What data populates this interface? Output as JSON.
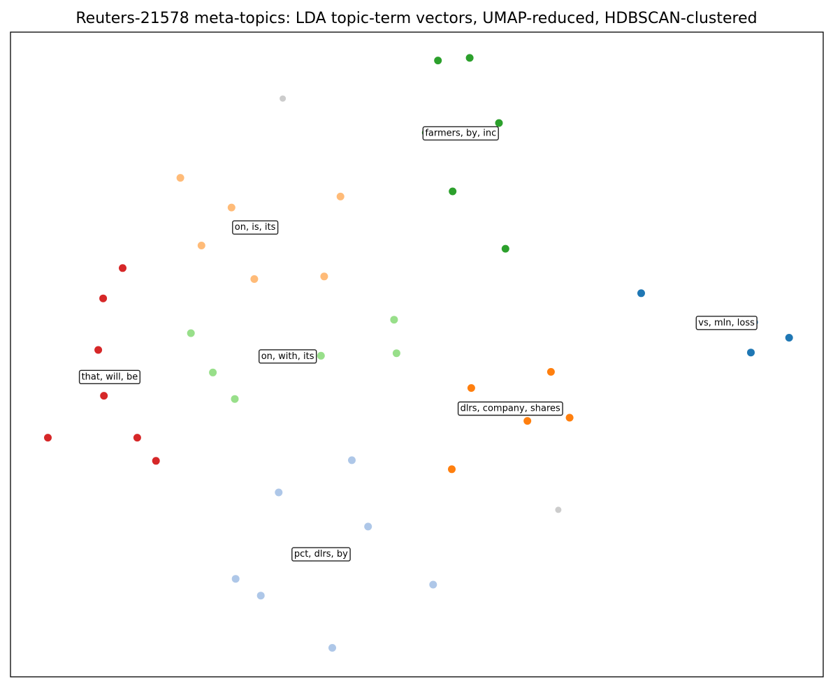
{
  "chart_data": {
    "type": "scatter",
    "title": "Reuters-21578 meta-topics: LDA topic-term vectors, UMAP-reduced, HDBSCAN-clustered",
    "xlabel": "",
    "ylabel": "",
    "xlim": [
      0,
      100
    ],
    "ylim": [
      0,
      100
    ],
    "grid": false,
    "axis_ticks": false,
    "series": [
      {
        "label": "farmers, by, inc",
        "color": "#2ca02c",
        "label_at": [
          55.4,
          84.3
        ],
        "points": [
          [
            52.6,
            95.6
          ],
          [
            56.5,
            96.0
          ],
          [
            60.1,
            85.9
          ],
          [
            51.1,
            84.4
          ],
          [
            54.4,
            75.3
          ],
          [
            60.9,
            66.4
          ]
        ]
      },
      {
        "label": "on, is, its",
        "color": "#ffbb78",
        "label_at": [
          30.1,
          69.7
        ],
        "points": [
          [
            20.9,
            77.4
          ],
          [
            27.2,
            72.8
          ],
          [
            40.6,
            74.5
          ],
          [
            23.5,
            66.9
          ],
          [
            30.0,
            61.7
          ],
          [
            38.6,
            62.1
          ]
        ]
      },
      {
        "label": "that, will, be",
        "color": "#d62728",
        "label_at": [
          12.2,
          46.5
        ],
        "points": [
          [
            13.8,
            63.4
          ],
          [
            11.4,
            58.7
          ],
          [
            10.8,
            50.7
          ],
          [
            11.5,
            43.6
          ],
          [
            4.6,
            37.1
          ],
          [
            15.6,
            37.1
          ],
          [
            17.9,
            33.5
          ]
        ]
      },
      {
        "label": "on, with, its",
        "color": "#98df8a",
        "label_at": [
          34.1,
          49.7
        ],
        "points": [
          [
            47.2,
            55.4
          ],
          [
            22.2,
            53.3
          ],
          [
            47.5,
            50.2
          ],
          [
            38.2,
            49.8
          ],
          [
            36.0,
            49.6
          ],
          [
            24.9,
            47.2
          ],
          [
            27.6,
            43.1
          ]
        ]
      },
      {
        "label": "vs, mln, loss",
        "color": "#1f77b4",
        "label_at": [
          88.1,
          54.9
        ],
        "points": [
          [
            77.6,
            59.5
          ],
          [
            95.8,
            52.6
          ],
          [
            91.1,
            50.3
          ],
          [
            91.5,
            55.0
          ]
        ]
      },
      {
        "label": "dlrs, company, shares",
        "color": "#ff7f0e",
        "label_at": [
          61.5,
          41.6
        ],
        "points": [
          [
            66.5,
            47.3
          ],
          [
            56.7,
            44.8
          ],
          [
            68.8,
            40.2
          ],
          [
            63.6,
            39.7
          ],
          [
            54.3,
            32.2
          ]
        ]
      },
      {
        "label": "pct, dlrs, by",
        "color": "#aec7e8",
        "label_at": [
          38.2,
          19.0
        ],
        "points": [
          [
            42.0,
            33.6
          ],
          [
            33.0,
            28.6
          ],
          [
            44.0,
            23.3
          ],
          [
            37.0,
            18.5
          ],
          [
            27.7,
            15.2
          ],
          [
            30.8,
            12.6
          ],
          [
            52.0,
            14.3
          ],
          [
            39.6,
            4.5
          ]
        ]
      },
      {
        "label": "",
        "color": "#cccccc",
        "noise": true,
        "points": [
          [
            33.5,
            89.7
          ],
          [
            67.4,
            25.9
          ]
        ]
      }
    ]
  }
}
